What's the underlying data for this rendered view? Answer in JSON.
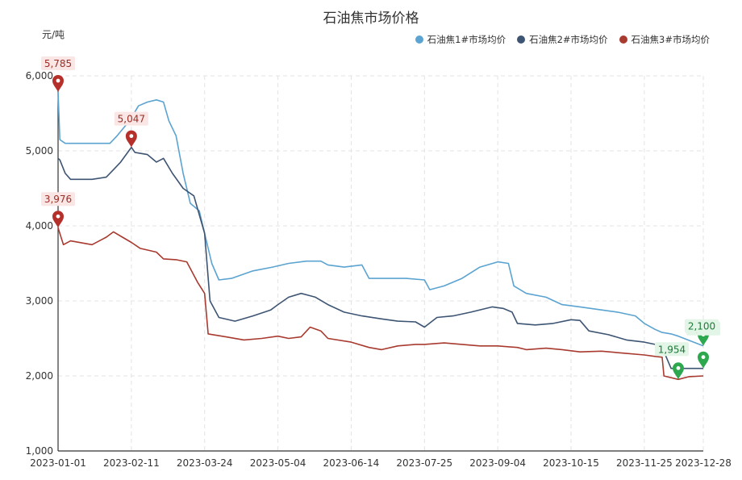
{
  "chart_data": {
    "type": "line",
    "title": "石油焦市场价格",
    "unit": "元/吨",
    "ylim": [
      1000,
      6000
    ],
    "y_ticks": [
      "1,000",
      "2,000",
      "3,000",
      "4,000",
      "5,000",
      "6,000"
    ],
    "x_tick_labels": [
      "2023-01-01",
      "2023-02-11",
      "2023-03-24",
      "2023-05-04",
      "2023-06-14",
      "2023-07-25",
      "2023-09-04",
      "2023-10-15",
      "2023-11-25",
      "2023-12-28"
    ],
    "grid": true,
    "legend_position": "top-right",
    "series": [
      {
        "name": "石油焦1#市场均价",
        "color": "#5ba3d0",
        "points": [
          [
            "2023-01-01",
            5785
          ],
          [
            "2023-01-02",
            5150
          ],
          [
            "2023-01-05",
            5100
          ],
          [
            "2023-01-20",
            5100
          ],
          [
            "2023-01-30",
            5100
          ],
          [
            "2023-02-03",
            5200
          ],
          [
            "2023-02-10",
            5400
          ],
          [
            "2023-02-15",
            5600
          ],
          [
            "2023-02-20",
            5650
          ],
          [
            "2023-02-25",
            5680
          ],
          [
            "2023-03-01",
            5650
          ],
          [
            "2023-03-04",
            5400
          ],
          [
            "2023-03-08",
            5200
          ],
          [
            "2023-03-12",
            4700
          ],
          [
            "2023-03-16",
            4300
          ],
          [
            "2023-03-21",
            4200
          ],
          [
            "2023-03-24",
            3900
          ],
          [
            "2023-03-28",
            3500
          ],
          [
            "2023-04-01",
            3280
          ],
          [
            "2023-04-08",
            3300
          ],
          [
            "2023-04-20",
            3400
          ],
          [
            "2023-05-01",
            3450
          ],
          [
            "2023-05-10",
            3500
          ],
          [
            "2023-05-20",
            3530
          ],
          [
            "2023-05-28",
            3530
          ],
          [
            "2023-06-01",
            3480
          ],
          [
            "2023-06-10",
            3450
          ],
          [
            "2023-06-20",
            3480
          ],
          [
            "2023-06-24",
            3300
          ],
          [
            "2023-07-05",
            3300
          ],
          [
            "2023-07-15",
            3300
          ],
          [
            "2023-07-25",
            3280
          ],
          [
            "2023-07-28",
            3150
          ],
          [
            "2023-08-05",
            3200
          ],
          [
            "2023-08-15",
            3300
          ],
          [
            "2023-08-25",
            3450
          ],
          [
            "2023-09-04",
            3520
          ],
          [
            "2023-09-10",
            3500
          ],
          [
            "2023-09-13",
            3200
          ],
          [
            "2023-09-20",
            3100
          ],
          [
            "2023-10-01",
            3050
          ],
          [
            "2023-10-10",
            2950
          ],
          [
            "2023-10-20",
            2920
          ],
          [
            "2023-11-01",
            2880
          ],
          [
            "2023-11-10",
            2850
          ],
          [
            "2023-11-20",
            2800
          ],
          [
            "2023-11-25",
            2700
          ],
          [
            "2023-12-01",
            2620
          ],
          [
            "2023-12-05",
            2580
          ],
          [
            "2023-12-10",
            2560
          ],
          [
            "2023-12-14",
            2530
          ],
          [
            "2023-12-28",
            2401
          ]
        ]
      },
      {
        "name": "石油焦2#市场均价",
        "color": "#3d5473",
        "points": [
          [
            "2023-01-01",
            4900
          ],
          [
            "2023-01-02",
            4880
          ],
          [
            "2023-01-05",
            4700
          ],
          [
            "2023-01-08",
            4620
          ],
          [
            "2023-01-20",
            4620
          ],
          [
            "2023-01-28",
            4650
          ],
          [
            "2023-02-01",
            4750
          ],
          [
            "2023-02-05",
            4850
          ],
          [
            "2023-02-11",
            5047
          ],
          [
            "2023-02-13",
            4980
          ],
          [
            "2023-02-20",
            4950
          ],
          [
            "2023-02-25",
            4850
          ],
          [
            "2023-03-01",
            4900
          ],
          [
            "2023-03-06",
            4700
          ],
          [
            "2023-03-12",
            4500
          ],
          [
            "2023-03-18",
            4400
          ],
          [
            "2023-03-24",
            3900
          ],
          [
            "2023-03-27",
            3000
          ],
          [
            "2023-04-01",
            2780
          ],
          [
            "2023-04-10",
            2730
          ],
          [
            "2023-04-20",
            2800
          ],
          [
            "2023-04-30",
            2880
          ],
          [
            "2023-05-04",
            2950
          ],
          [
            "2023-05-10",
            3050
          ],
          [
            "2023-05-17",
            3100
          ],
          [
            "2023-05-25",
            3050
          ],
          [
            "2023-06-01",
            2950
          ],
          [
            "2023-06-10",
            2850
          ],
          [
            "2023-06-20",
            2800
          ],
          [
            "2023-07-01",
            2760
          ],
          [
            "2023-07-10",
            2730
          ],
          [
            "2023-07-20",
            2720
          ],
          [
            "2023-07-25",
            2650
          ],
          [
            "2023-08-01",
            2780
          ],
          [
            "2023-08-10",
            2800
          ],
          [
            "2023-08-20",
            2850
          ],
          [
            "2023-09-01",
            2920
          ],
          [
            "2023-09-07",
            2900
          ],
          [
            "2023-09-12",
            2850
          ],
          [
            "2023-09-15",
            2700
          ],
          [
            "2023-09-25",
            2680
          ],
          [
            "2023-10-05",
            2700
          ],
          [
            "2023-10-15",
            2750
          ],
          [
            "2023-10-20",
            2740
          ],
          [
            "2023-10-25",
            2600
          ],
          [
            "2023-11-05",
            2550
          ],
          [
            "2023-11-15",
            2480
          ],
          [
            "2023-11-25",
            2450
          ],
          [
            "2023-12-01",
            2420
          ],
          [
            "2023-12-05",
            2380
          ],
          [
            "2023-12-10",
            2100
          ],
          [
            "2023-12-20",
            2100
          ],
          [
            "2023-12-28",
            2100
          ]
        ]
      },
      {
        "name": "石油焦3#市场均价",
        "color": "#a83a2f",
        "points": [
          [
            "2023-01-01",
            3976
          ],
          [
            "2023-01-02",
            3900
          ],
          [
            "2023-01-04",
            3750
          ],
          [
            "2023-01-08",
            3800
          ],
          [
            "2023-01-20",
            3750
          ],
          [
            "2023-01-28",
            3850
          ],
          [
            "2023-02-01",
            3920
          ],
          [
            "2023-02-06",
            3850
          ],
          [
            "2023-02-11",
            3780
          ],
          [
            "2023-02-16",
            3700
          ],
          [
            "2023-02-25",
            3650
          ],
          [
            "2023-03-01",
            3560
          ],
          [
            "2023-03-08",
            3550
          ],
          [
            "2023-03-14",
            3520
          ],
          [
            "2023-03-20",
            3250
          ],
          [
            "2023-03-24",
            3100
          ],
          [
            "2023-03-26",
            2560
          ],
          [
            "2023-04-05",
            2520
          ],
          [
            "2023-04-15",
            2480
          ],
          [
            "2023-04-25",
            2500
          ],
          [
            "2023-05-04",
            2530
          ],
          [
            "2023-05-10",
            2500
          ],
          [
            "2023-05-17",
            2520
          ],
          [
            "2023-05-22",
            2650
          ],
          [
            "2023-05-28",
            2600
          ],
          [
            "2023-06-01",
            2500
          ],
          [
            "2023-06-14",
            2450
          ],
          [
            "2023-06-24",
            2380
          ],
          [
            "2023-07-01",
            2350
          ],
          [
            "2023-07-10",
            2400
          ],
          [
            "2023-07-20",
            2420
          ],
          [
            "2023-07-25",
            2420
          ],
          [
            "2023-08-05",
            2440
          ],
          [
            "2023-08-15",
            2420
          ],
          [
            "2023-08-25",
            2400
          ],
          [
            "2023-09-04",
            2400
          ],
          [
            "2023-09-15",
            2380
          ],
          [
            "2023-09-20",
            2350
          ],
          [
            "2023-10-01",
            2370
          ],
          [
            "2023-10-10",
            2350
          ],
          [
            "2023-10-20",
            2320
          ],
          [
            "2023-11-01",
            2330
          ],
          [
            "2023-11-15",
            2300
          ],
          [
            "2023-11-25",
            2280
          ],
          [
            "2023-12-01",
            2260
          ],
          [
            "2023-12-05",
            2250
          ],
          [
            "2023-12-06",
            2000
          ],
          [
            "2023-12-14",
            1954
          ],
          [
            "2023-12-20",
            1990
          ],
          [
            "2023-12-28",
            2000
          ]
        ]
      }
    ],
    "max_markers": [
      {
        "series": 0,
        "date": "2023-01-01",
        "label": "5,785"
      },
      {
        "series": 1,
        "date": "2023-02-11",
        "label": "5,047"
      },
      {
        "series": 2,
        "date": "2023-01-01",
        "label": "3,976"
      }
    ],
    "min_markers": [
      {
        "series": 0,
        "date": "2023-12-28",
        "label": "2,401"
      },
      {
        "series": 1,
        "date": "2023-12-28",
        "label": "2,100"
      },
      {
        "series": 2,
        "date": "2023-12-14",
        "label": "1,954"
      }
    ]
  }
}
